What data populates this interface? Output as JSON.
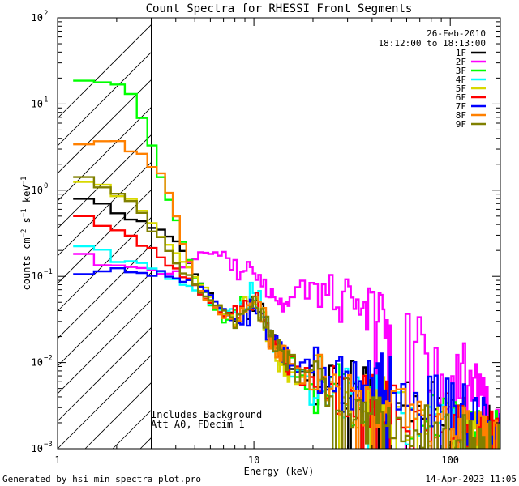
{
  "chart_data": {
    "type": "line",
    "title": "Count Spectra for RHESSI Front Segments",
    "xlabel": "Energy (keV)",
    "ylabel": "counts cm⁻² s⁻¹ keV⁻¹",
    "x_scale": "log",
    "y_scale": "log",
    "xlim": [
      1,
      180
    ],
    "ylim": [
      0.001,
      100
    ],
    "x_tick_labels": [
      {
        "value": 1,
        "label": "1"
      },
      {
        "value": 10,
        "label": "10"
      },
      {
        "value": 100,
        "label": "100"
      }
    ],
    "y_tick_labels": [
      {
        "value": 0.001,
        "mantissa": "10",
        "exponent": "−3"
      },
      {
        "value": 0.01,
        "mantissa": "10",
        "exponent": "−2"
      },
      {
        "value": 0.1,
        "mantissa": "10",
        "exponent": "−1"
      },
      {
        "value": 1,
        "mantissa": "10",
        "exponent": "0"
      },
      {
        "value": 10,
        "mantissa": "10",
        "exponent": "1"
      },
      {
        "value": 100,
        "mantissa": "10",
        "exponent": "2"
      }
    ],
    "date": "26-Feb-2010",
    "time_range": "18:12:00 to 18:13:00",
    "annotations": [
      "Includes_Background",
      "Att A0, FDecim 1"
    ],
    "hatched_region_keV": [
      1,
      3
    ],
    "legend_position": "top-right",
    "series": [
      {
        "name": "1F",
        "color": "#000000",
        "knots": [
          [
            1.2,
            0.95
          ],
          [
            1.5,
            0.75
          ],
          [
            2,
            0.55
          ],
          [
            3,
            0.38
          ],
          [
            4,
            0.28
          ],
          [
            5,
            0.11
          ],
          [
            6,
            0.06
          ],
          [
            7,
            0.04
          ],
          [
            8,
            0.035
          ],
          [
            10,
            0.05
          ],
          [
            11,
            0.045
          ],
          [
            12,
            0.02
          ],
          [
            15,
            0.012
          ],
          [
            20,
            0.007
          ],
          [
            30,
            0.005
          ],
          [
            50,
            0.003
          ],
          [
            70,
            0.004
          ],
          [
            100,
            0.002
          ],
          [
            150,
            0.0015
          ],
          [
            180,
            0.0012
          ]
        ]
      },
      {
        "name": "2F",
        "color": "#ff00ff",
        "knots": [
          [
            1.2,
            0.15
          ],
          [
            1.4,
            0.2
          ],
          [
            1.6,
            0.15
          ],
          [
            2,
            0.13
          ],
          [
            2.5,
            0.13
          ],
          [
            3,
            0.12
          ],
          [
            4,
            0.11
          ],
          [
            5,
            0.16
          ],
          [
            6,
            0.2
          ],
          [
            7,
            0.18
          ],
          [
            8,
            0.11
          ],
          [
            9,
            0.13
          ],
          [
            10,
            0.13
          ],
          [
            11,
            0.1
          ],
          [
            12,
            0.07
          ],
          [
            13,
            0.05
          ],
          [
            16,
            0.06
          ],
          [
            20,
            0.08
          ],
          [
            25,
            0.07
          ],
          [
            30,
            0.06
          ],
          [
            40,
            0.04
          ],
          [
            50,
            0.025
          ],
          [
            60,
            0.02
          ],
          [
            70,
            0.015
          ],
          [
            80,
            0.008
          ],
          [
            100,
            0.006
          ],
          [
            120,
            0.008
          ],
          [
            150,
            0.003
          ],
          [
            180,
            0.0015
          ]
        ]
      },
      {
        "name": "3F",
        "color": "#00ff00",
        "knots": [
          [
            1.2,
            18
          ],
          [
            1.5,
            20
          ],
          [
            2,
            16
          ],
          [
            2.5,
            12
          ],
          [
            3,
            3.5
          ],
          [
            3.3,
            1.6
          ],
          [
            4,
            0.5
          ],
          [
            4.5,
            0.2
          ],
          [
            5,
            0.1
          ],
          [
            6,
            0.05
          ],
          [
            7,
            0.03
          ],
          [
            8,
            0.035
          ],
          [
            10,
            0.06
          ],
          [
            11,
            0.04
          ],
          [
            12,
            0.02
          ],
          [
            15,
            0.01
          ],
          [
            20,
            0.006
          ],
          [
            30,
            0.004
          ],
          [
            50,
            0.003
          ],
          [
            70,
            0.002
          ],
          [
            100,
            0.0018
          ],
          [
            150,
            0.0014
          ],
          [
            180,
            0.0012
          ]
        ]
      },
      {
        "name": "4F",
        "color": "#00ffff",
        "knots": [
          [
            1.2,
            0.22
          ],
          [
            1.5,
            0.23
          ],
          [
            2,
            0.16
          ],
          [
            2.5,
            0.14
          ],
          [
            3,
            0.12
          ],
          [
            4,
            0.09
          ],
          [
            5,
            0.07
          ],
          [
            6,
            0.05
          ],
          [
            7,
            0.035
          ],
          [
            8,
            0.04
          ],
          [
            10,
            0.07
          ],
          [
            11,
            0.045
          ],
          [
            12,
            0.02
          ],
          [
            15,
            0.01
          ],
          [
            20,
            0.004
          ],
          [
            30,
            0.004
          ],
          [
            50,
            0.003
          ],
          [
            70,
            0.002
          ],
          [
            100,
            0.0015
          ],
          [
            150,
            0.0012
          ],
          [
            180,
            0.001
          ]
        ]
      },
      {
        "name": "5F",
        "color": "#d8d800",
        "knots": [
          [
            1.2,
            1.3
          ],
          [
            1.5,
            1.2
          ],
          [
            2,
            0.9
          ],
          [
            2.5,
            0.7
          ],
          [
            3,
            0.4
          ],
          [
            4,
            0.2
          ],
          [
            5,
            0.1
          ],
          [
            6,
            0.06
          ],
          [
            7,
            0.04
          ],
          [
            8,
            0.035
          ],
          [
            10,
            0.05
          ],
          [
            11,
            0.04
          ],
          [
            12,
            0.015
          ],
          [
            15,
            0.008
          ],
          [
            20,
            0.006
          ],
          [
            30,
            0.004
          ],
          [
            50,
            0.003
          ],
          [
            70,
            0.002
          ],
          [
            100,
            0.0015
          ],
          [
            150,
            0.0012
          ],
          [
            180,
            0.001
          ]
        ]
      },
      {
        "name": "6F",
        "color": "#ff0000",
        "knots": [
          [
            1.2,
            0.55
          ],
          [
            1.5,
            0.45
          ],
          [
            2,
            0.35
          ],
          [
            2.5,
            0.25
          ],
          [
            3,
            0.2
          ],
          [
            4,
            0.12
          ],
          [
            5,
            0.08
          ],
          [
            6,
            0.05
          ],
          [
            7,
            0.035
          ],
          [
            8,
            0.035
          ],
          [
            10,
            0.05
          ],
          [
            11,
            0.04
          ],
          [
            12,
            0.02
          ],
          [
            15,
            0.01
          ],
          [
            20,
            0.006
          ],
          [
            30,
            0.004
          ],
          [
            50,
            0.003
          ],
          [
            70,
            0.0025
          ],
          [
            100,
            0.002
          ],
          [
            150,
            0.0015
          ],
          [
            180,
            0.0012
          ]
        ]
      },
      {
        "name": "7F",
        "color": "#0000ff",
        "knots": [
          [
            1.2,
            0.095
          ],
          [
            1.5,
            0.11
          ],
          [
            2,
            0.12
          ],
          [
            2.5,
            0.12
          ],
          [
            3,
            0.11
          ],
          [
            4,
            0.1
          ],
          [
            5,
            0.08
          ],
          [
            6,
            0.06
          ],
          [
            7,
            0.04
          ],
          [
            8,
            0.03
          ],
          [
            10,
            0.04
          ],
          [
            11,
            0.035
          ],
          [
            12,
            0.02
          ],
          [
            15,
            0.012
          ],
          [
            20,
            0.008
          ],
          [
            30,
            0.005
          ],
          [
            50,
            0.006
          ],
          [
            70,
            0.004
          ],
          [
            100,
            0.003
          ],
          [
            150,
            0.002
          ],
          [
            180,
            0.0015
          ]
        ]
      },
      {
        "name": "8F",
        "color": "#ff8000",
        "knots": [
          [
            1.2,
            3
          ],
          [
            1.5,
            3.5
          ],
          [
            2,
            3.5
          ],
          [
            2.5,
            2.8
          ],
          [
            3,
            2
          ],
          [
            3.5,
            1.5
          ],
          [
            4,
            0.5
          ],
          [
            4.5,
            0.2
          ],
          [
            5,
            0.08
          ],
          [
            6,
            0.05
          ],
          [
            7,
            0.035
          ],
          [
            8,
            0.03
          ],
          [
            10,
            0.045
          ],
          [
            11,
            0.04
          ],
          [
            12,
            0.02
          ],
          [
            15,
            0.01
          ],
          [
            20,
            0.006
          ],
          [
            30,
            0.004
          ],
          [
            50,
            0.003
          ],
          [
            70,
            0.002
          ],
          [
            100,
            0.0015
          ],
          [
            150,
            0.0012
          ],
          [
            180,
            0.001
          ]
        ]
      },
      {
        "name": "9F",
        "color": "#808000",
        "knots": [
          [
            1.2,
            1.4
          ],
          [
            1.5,
            1.3
          ],
          [
            2,
            1
          ],
          [
            2.5,
            0.7
          ],
          [
            3,
            0.35
          ],
          [
            3.5,
            0.25
          ],
          [
            4,
            0.15
          ],
          [
            5,
            0.08
          ],
          [
            6,
            0.05
          ],
          [
            7,
            0.04
          ],
          [
            8,
            0.035
          ],
          [
            10,
            0.05
          ],
          [
            11,
            0.04
          ],
          [
            12,
            0.02
          ],
          [
            15,
            0.01
          ],
          [
            20,
            0.006
          ],
          [
            30,
            0.003
          ],
          [
            50,
            0.002
          ],
          [
            70,
            0.0015
          ],
          [
            100,
            0.0012
          ],
          [
            150,
            0.001
          ],
          [
            180,
            0.001
          ]
        ]
      }
    ]
  },
  "footer": {
    "generated_by": "Generated by hsi_min_spectra_plot.pro",
    "timestamp": "14-Apr-2023 11:05"
  }
}
